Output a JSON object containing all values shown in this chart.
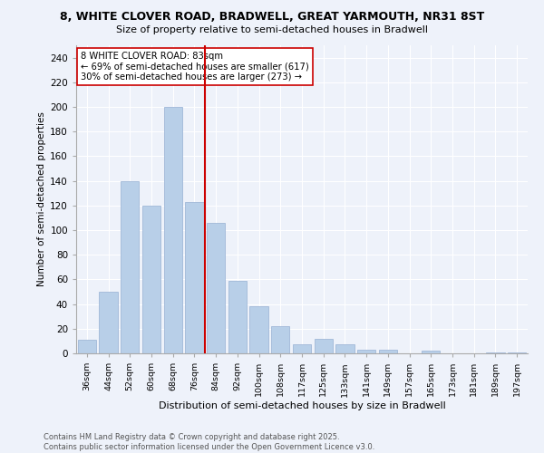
{
  "title_line1": "8, WHITE CLOVER ROAD, BRADWELL, GREAT YARMOUTH, NR31 8ST",
  "title_line2": "Size of property relative to semi-detached houses in Bradwell",
  "bar_labels": [
    "36sqm",
    "44sqm",
    "52sqm",
    "60sqm",
    "68sqm",
    "76sqm",
    "84sqm",
    "92sqm",
    "100sqm",
    "108sqm",
    "117sqm",
    "125sqm",
    "133sqm",
    "141sqm",
    "149sqm",
    "157sqm",
    "165sqm",
    "173sqm",
    "181sqm",
    "189sqm",
    "197sqm"
  ],
  "bar_values": [
    11,
    50,
    140,
    120,
    200,
    123,
    106,
    59,
    38,
    22,
    7,
    12,
    7,
    3,
    3,
    0,
    2,
    0,
    0,
    1,
    1
  ],
  "bar_color": "#b8cfe8",
  "bar_edgecolor": "#a0b8d8",
  "vline_color": "#cc0000",
  "annotation_text": "8 WHITE CLOVER ROAD: 83sqm\n← 69% of semi-detached houses are smaller (617)\n30% of semi-detached houses are larger (273) →",
  "annotation_box_edgecolor": "#cc0000",
  "ylabel": "Number of semi-detached properties",
  "xlabel": "Distribution of semi-detached houses by size in Bradwell",
  "ylim": [
    0,
    250
  ],
  "yticks": [
    0,
    20,
    40,
    60,
    80,
    100,
    120,
    140,
    160,
    180,
    200,
    220,
    240
  ],
  "footer_line1": "Contains HM Land Registry data © Crown copyright and database right 2025.",
  "footer_line2": "Contains public sector information licensed under the Open Government Licence v3.0.",
  "background_color": "#eef2fa",
  "grid_color": "#ffffff"
}
